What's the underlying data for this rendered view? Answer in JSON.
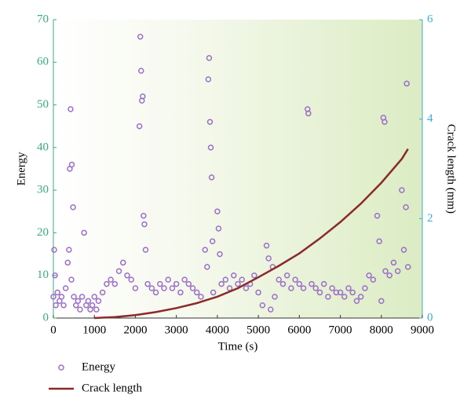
{
  "chart_data": {
    "type": "scatter",
    "xlabel": "Time (s)",
    "ylabel": "Energy",
    "y2label": "Crack length (mm)",
    "xlim": [
      0,
      9000
    ],
    "xticks": [
      0,
      1000,
      2000,
      3000,
      4000,
      5000,
      6000,
      7000,
      8000,
      9000
    ],
    "ylim": [
      0,
      70
    ],
    "yticks": [
      0,
      10,
      20,
      30,
      40,
      50,
      60,
      70
    ],
    "y2lim": [
      0,
      6
    ],
    "y2ticks": [
      0,
      2,
      4,
      6
    ],
    "series": [
      {
        "name": "Energy",
        "type": "scatter",
        "color": "#9b6fc7",
        "x": [
          0,
          20,
          40,
          60,
          100,
          150,
          200,
          250,
          300,
          350,
          380,
          400,
          420,
          440,
          450,
          480,
          500,
          550,
          600,
          650,
          700,
          750,
          800,
          850,
          900,
          950,
          1000,
          1050,
          1100,
          1200,
          1300,
          1400,
          1500,
          1600,
          1700,
          1800,
          1900,
          2000,
          2100,
          2120,
          2140,
          2160,
          2180,
          2200,
          2220,
          2250,
          2300,
          2400,
          2500,
          2600,
          2700,
          2800,
          2900,
          3000,
          3100,
          3200,
          3300,
          3400,
          3500,
          3600,
          3700,
          3750,
          3780,
          3800,
          3820,
          3840,
          3860,
          3880,
          3900,
          4000,
          4030,
          4060,
          4100,
          4200,
          4300,
          4400,
          4500,
          4600,
          4700,
          4800,
          4900,
          5000,
          5100,
          5200,
          5250,
          5300,
          5350,
          5400,
          5500,
          5600,
          5700,
          5800,
          5900,
          6000,
          6100,
          6200,
          6220,
          6300,
          6400,
          6500,
          6600,
          6700,
          6800,
          6900,
          7000,
          7100,
          7200,
          7300,
          7400,
          7500,
          7600,
          7700,
          7800,
          7900,
          7950,
          8000,
          8050,
          8080,
          8100,
          8200,
          8300,
          8400,
          8500,
          8550,
          8600,
          8620,
          8650
        ],
        "values": [
          5,
          16,
          10,
          3,
          6,
          4,
          5,
          3,
          7,
          13,
          16,
          35,
          49,
          9,
          36,
          26,
          5,
          3,
          4,
          2,
          5,
          20,
          3,
          4,
          2,
          3,
          5,
          2,
          4,
          6,
          8,
          9,
          8,
          11,
          13,
          10,
          9,
          7,
          45,
          66,
          58,
          51,
          52,
          24,
          22,
          16,
          8,
          7,
          6,
          8,
          7,
          9,
          7,
          8,
          6,
          9,
          8,
          7,
          6,
          5,
          16,
          12,
          56,
          61,
          46,
          40,
          33,
          18,
          6,
          25,
          21,
          15,
          8,
          9,
          7,
          10,
          8,
          9,
          7,
          8,
          10,
          6,
          3,
          17,
          14,
          2,
          12,
          5,
          9,
          8,
          10,
          7,
          9,
          8,
          7,
          49,
          48,
          8,
          7,
          6,
          8,
          5,
          7,
          6,
          6,
          5,
          7,
          6,
          4,
          5,
          7,
          10,
          9,
          24,
          18,
          4,
          47,
          46,
          11,
          10,
          13,
          11,
          30,
          16,
          26,
          55,
          12
        ]
      },
      {
        "name": "Crack length",
        "type": "line",
        "color": "#8b2a2a",
        "axis": "y2",
        "x": [
          1000,
          1500,
          2000,
          2500,
          3000,
          3500,
          4000,
          4500,
          5000,
          5500,
          6000,
          6500,
          7000,
          7500,
          8000,
          8500,
          8650
        ],
        "values": [
          0,
          0.02,
          0.06,
          0.12,
          0.2,
          0.3,
          0.43,
          0.6,
          0.82,
          1.05,
          1.3,
          1.6,
          1.93,
          2.3,
          2.72,
          3.2,
          3.4
        ]
      }
    ]
  }
}
